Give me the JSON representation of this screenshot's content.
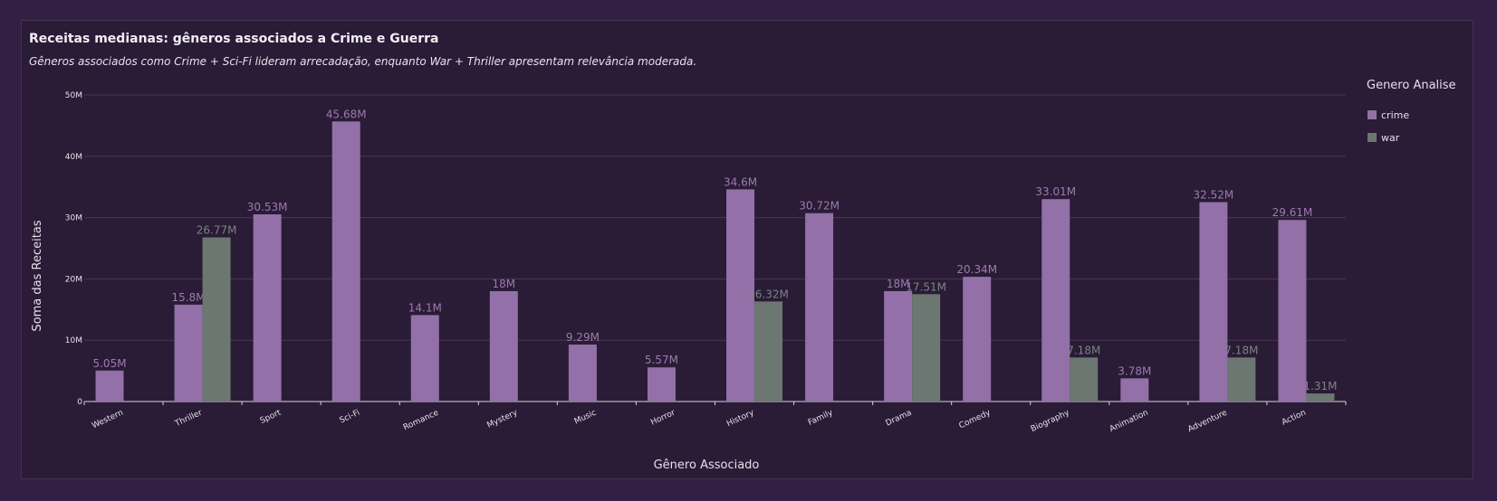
{
  "title": "Receitas medianas: gêneros associados a Crime e Guerra",
  "subtitle": "Gêneros associados como Crime + Sci-Fi lideram arrecadação, enquanto War + Thriller apresentam relevância moderada.",
  "chart_data": {
    "type": "bar",
    "xlabel": "Gênero Associado",
    "ylabel": "Soma das Receitas",
    "ylim": [
      0,
      50000000
    ],
    "yticks": [
      {
        "value": 0,
        "label": "0"
      },
      {
        "value": 10000000,
        "label": "10M"
      },
      {
        "value": 20000000,
        "label": "20M"
      },
      {
        "value": 30000000,
        "label": "30M"
      },
      {
        "value": 40000000,
        "label": "40M"
      },
      {
        "value": 50000000,
        "label": "50M"
      }
    ],
    "grid": true,
    "legend_title": "Genero Analise",
    "legend_position": "right",
    "categories": [
      "Western",
      "Thriller",
      "Sport",
      "Sci-Fi",
      "Romance",
      "Mystery",
      "Music",
      "Horror",
      "History",
      "Family",
      "Drama",
      "Comedy",
      "Biography",
      "Animation",
      "Adventure",
      "Action"
    ],
    "series": [
      {
        "name": "crime",
        "color": "#9370a8",
        "values": [
          5050000,
          15800000,
          30530000,
          45680000,
          14100000,
          18000000,
          9290000,
          5570000,
          34600000,
          30720000,
          18000000,
          20340000,
          33010000,
          3780000,
          32520000,
          29610000
        ],
        "labels": [
          "5.05M",
          "15.8M",
          "30.53M",
          "45.68M",
          "14.1M",
          "18M",
          "9.29M",
          "5.57M",
          "34.6M",
          "30.72M",
          "18M",
          "20.34M",
          "33.01M",
          "3.78M",
          "32.52M",
          "29.61M"
        ]
      },
      {
        "name": "war",
        "color": "#6c7771",
        "values": [
          null,
          26770000,
          null,
          null,
          null,
          null,
          null,
          null,
          16320000,
          null,
          17510000,
          null,
          7180000,
          null,
          7180000,
          1310000
        ],
        "labels": [
          null,
          "26.77M",
          null,
          null,
          null,
          null,
          null,
          null,
          "16.32M",
          null,
          "17.51M",
          null,
          "7.18M",
          null,
          "7.18M",
          "1.31M"
        ]
      }
    ]
  }
}
